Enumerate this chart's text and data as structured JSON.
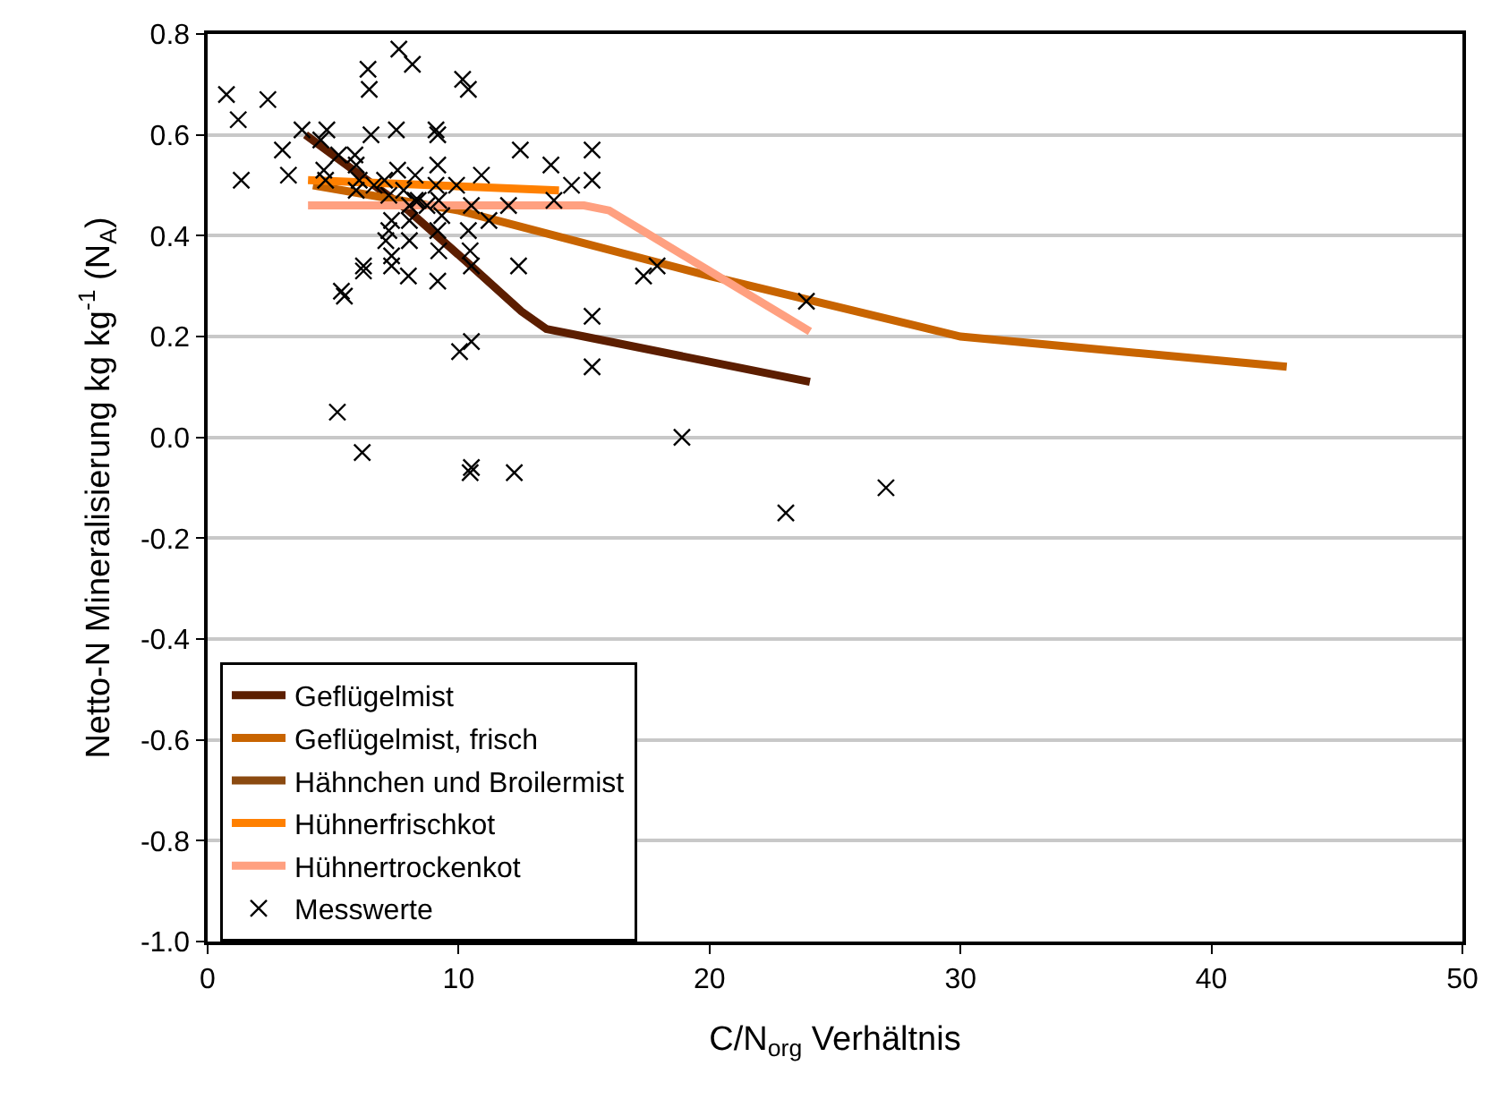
{
  "chart_data": {
    "type": "line",
    "xlabel": "C/N$_{org}$ Verhältnis",
    "ylabel": "Netto-N Mineralisierung kg kg$^{-1}$ (N$_{A}$)",
    "xlim": [
      0,
      50
    ],
    "xticks": [
      0,
      10,
      20,
      30,
      40,
      50
    ],
    "ylim": [
      -1.0,
      0.8
    ],
    "yticks": [
      {
        "value": -1.0,
        "label": "-1.0"
      },
      {
        "value": -0.8,
        "label": "-0.8"
      },
      {
        "value": -0.6,
        "label": "-0.6"
      },
      {
        "value": -0.4,
        "label": "-0.4"
      },
      {
        "value": -0.2,
        "label": "-0.2"
      },
      {
        "value": 0,
        "label": "0.0"
      },
      {
        "value": 0.2,
        "label": "0.2"
      },
      {
        "value": 0.4,
        "label": "0.4"
      },
      {
        "value": 0.6,
        "label": "0.6"
      },
      {
        "value": 0.8,
        "label": "0.8"
      }
    ],
    "grid": "y",
    "legend": "bottom left",
    "marker": "none",
    "line_style": "solid",
    "series": [
      {
        "name": "Geflügelmist",
        "color": "#5c1e00",
        "x": [
          3.9,
          8,
          10.5,
          12.5,
          13.5,
          15,
          24
        ],
        "values": [
          0.6,
          0.45,
          0.34,
          0.25,
          0.215,
          0.2,
          0.11
        ]
      },
      {
        "name": "Geflügelmist, frisch",
        "color": "#c86400",
        "x": [
          4.2,
          10,
          20,
          30,
          43
        ],
        "values": [
          0.5,
          0.45,
          0.32,
          0.2,
          0.14
        ]
      },
      {
        "name": "Hähnchen und Broilermist",
        "color": "#8b4a10",
        "values": [
          null
        ]
      },
      {
        "name": "Hühnerfrischkot",
        "color": "#ff8000",
        "x": [
          4.0,
          14.0
        ],
        "values": [
          0.51,
          0.49
        ]
      },
      {
        "name": "Hühnertrockenkot",
        "color": "#ffa080",
        "x": [
          4.0,
          15.0,
          16.0,
          24.0
        ],
        "values": [
          0.46,
          0.46,
          0.45,
          0.21
        ]
      },
      {
        "name": "Messwerte",
        "type": "scatter",
        "marker": "cross",
        "color": "#000000",
        "x": [
          0.75,
          1.22,
          1.34,
          2.4,
          2.98,
          3.22,
          3.76,
          4.51,
          4.75,
          4.63,
          4.7,
          5.22,
          5.33,
          5.45,
          5.17,
          5.87,
          5.92,
          6.04,
          5.92,
          6.16,
          6.21,
          6.21,
          6.39,
          6.44,
          6.51,
          6.63,
          7.05,
          7.22,
          7.22,
          7.33,
          7.33,
          7.52,
          7.62,
          8.16,
          7.57,
          7.81,
          8.0,
          8.04,
          8.04,
          8.27,
          8.27,
          9.1,
          9.17,
          9.17,
          9.1,
          9.17,
          9.17,
          9.21,
          9.33,
          9.21,
          9.92,
          10.16,
          10.39,
          10.04,
          10.51,
          10.46,
          10.51,
          10.46,
          10.39,
          10.51,
          10.51,
          10.91,
          11.21,
          11.99,
          12.46,
          12.39,
          12.22,
          13.68,
          13.8,
          14.5,
          15.32,
          15.32,
          15.32,
          15.32,
          17.37,
          17.91,
          18.9,
          8.74,
          8.39,
          7.1,
          7.33,
          8.04,
          23.86,
          27.03,
          23.04
        ],
        "values": [
          0.68,
          0.63,
          0.51,
          0.67,
          0.57,
          0.52,
          0.61,
          0.59,
          0.61,
          0.53,
          0.51,
          0.56,
          0.29,
          0.28,
          0.05,
          0.56,
          0.54,
          0.51,
          0.49,
          -0.03,
          0.34,
          0.33,
          0.73,
          0.69,
          0.6,
          0.5,
          0.51,
          0.48,
          0.41,
          0.36,
          0.34,
          0.61,
          0.77,
          0.74,
          0.53,
          0.49,
          0.32,
          0.39,
          0.46,
          0.47,
          0.52,
          0.61,
          0.6,
          0.54,
          0.5,
          0.31,
          0.41,
          0.37,
          0.44,
          0.47,
          0.5,
          0.71,
          0.69,
          0.17,
          0.19,
          -0.07,
          -0.06,
          0.37,
          0.41,
          0.34,
          0.46,
          0.52,
          0.43,
          0.46,
          0.57,
          0.34,
          -0.07,
          0.54,
          0.47,
          0.5,
          0.57,
          0.51,
          0.24,
          0.14,
          0.32,
          0.34,
          0.0,
          0.46,
          0.47,
          0.39,
          0.43,
          0.43,
          0.27,
          -0.1,
          -0.15
        ]
      }
    ]
  }
}
